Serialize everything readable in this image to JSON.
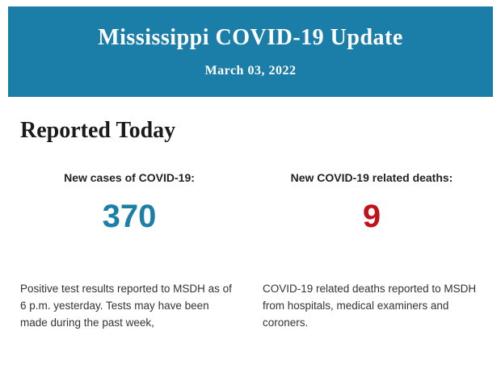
{
  "banner": {
    "title": "Mississippi COVID-19 Update",
    "date": "March 03, 2022",
    "background": "#1a7ea8"
  },
  "section": {
    "title": "Reported Today"
  },
  "stats": [
    {
      "label": "New cases of COVID-19:",
      "value": "370",
      "color": "#1b7fa6",
      "description": "Positive test results reported to MSDH as of 6 p.m. yesterday. Tests may have been made during the past week,"
    },
    {
      "label": "New COVID-19 related deaths:",
      "value": "9",
      "color": "#c1121c",
      "description": "COVID-19 related deaths reported to MSDH from hospitals, medical examiners and coroners."
    }
  ]
}
